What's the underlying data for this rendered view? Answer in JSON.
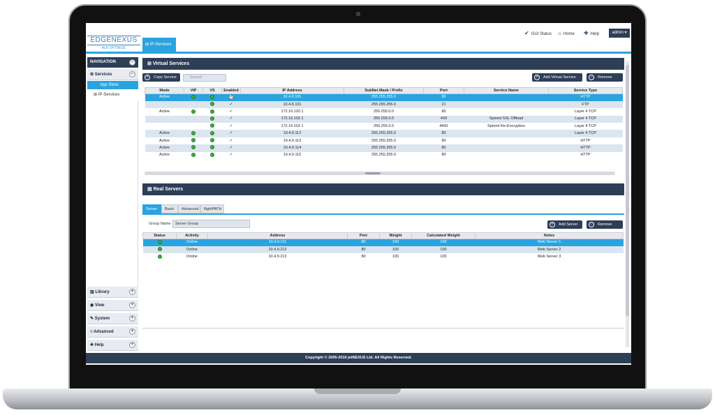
{
  "header": {
    "logo_main": "EDGENEXUS",
    "logo_sub": "ALB OPTIMIZE",
    "active_tab": "IP-Services",
    "nav": [
      {
        "label": "GUI Status",
        "icon": "shield-check-icon"
      },
      {
        "label": "Home",
        "icon": "home-icon"
      },
      {
        "label": "Help",
        "icon": "help-icon"
      }
    ],
    "user": "admin ▾"
  },
  "sidebar": {
    "title": "NAVIGATION",
    "services_label": "Services",
    "app_store_label": "App Store",
    "ip_services_label": "IP-Services",
    "bottom_items": [
      {
        "label": "Library",
        "icon": "library-icon"
      },
      {
        "label": "View",
        "icon": "eye-icon"
      },
      {
        "label": "System",
        "icon": "wrench-icon"
      },
      {
        "label": "Advanced",
        "icon": "sliders-icon"
      },
      {
        "label": "Help",
        "icon": "help-icon"
      }
    ]
  },
  "virtual_services": {
    "title": "Virtual Services",
    "copy_button": "Copy Service",
    "search_placeholder": "Search",
    "add_button": "Add Virtual Service",
    "remove_button": "Remove",
    "columns": [
      "Mode",
      "VIP",
      "VS",
      "Enabled",
      "IP Address",
      "SubNet Mask / Prefix",
      "Port",
      "Service Name",
      "Service Type"
    ],
    "rows": [
      {
        "mode": "Active",
        "vip": true,
        "vs": true,
        "enabled": "box",
        "ip": "10.4.8.101",
        "mask": "255.255.255.0",
        "port": "80",
        "name": "",
        "type": "HTTP",
        "state": "sel"
      },
      {
        "mode": "",
        "vip": false,
        "vs": true,
        "enabled": "tick",
        "ip": "10.4.8.101",
        "mask": "255.255.255.0",
        "port": "21",
        "name": "",
        "type": "FTP",
        "state": "alt"
      },
      {
        "mode": "Active",
        "vip": true,
        "vs": true,
        "enabled": "tick",
        "ip": "172.16.102.1",
        "mask": "255.255.0.0",
        "port": "80",
        "name": "",
        "type": "Layer 4 TCP",
        "state": ""
      },
      {
        "mode": "",
        "vip": false,
        "vs": true,
        "enabled": "tick",
        "ip": "172.16.102.1",
        "mask": "255.255.0.0",
        "port": "443",
        "name": "Spirent SSL Offload",
        "type": "Layer 4 TCP",
        "state": "alt"
      },
      {
        "mode": "",
        "vip": false,
        "vs": true,
        "enabled": "tick",
        "ip": "172.16.102.1",
        "mask": "255.255.0.0",
        "port": "4443",
        "name": "Spirent Re-Encryption",
        "type": "Layer 4 TCP",
        "state": ""
      },
      {
        "mode": "Active",
        "vip": true,
        "vs": true,
        "enabled": "tick",
        "ip": "10.4.9.112",
        "mask": "255.255.255.0",
        "port": "80",
        "name": "",
        "type": "Layer 4 TCP",
        "state": "alt"
      },
      {
        "mode": "Active",
        "vip": true,
        "vs": true,
        "enabled": "tick",
        "ip": "10.4.9.113",
        "mask": "255.255.255.0",
        "port": "80",
        "name": "",
        "type": "HTTP",
        "state": ""
      },
      {
        "mode": "Active",
        "vip": true,
        "vs": true,
        "enabled": "tick",
        "ip": "10.4.9.114",
        "mask": "255.255.255.0",
        "port": "80",
        "name": "",
        "type": "HTTP",
        "state": "alt"
      },
      {
        "mode": "Active",
        "vip": true,
        "vs": true,
        "enabled": "tick",
        "ip": "10.4.9.115",
        "mask": "255.255.255.0",
        "port": "80",
        "name": "",
        "type": "HTTP",
        "state": ""
      }
    ]
  },
  "real_servers": {
    "title": "Real Servers",
    "tabs": [
      "Server",
      "Basic",
      "Advanced",
      "flightPATH"
    ],
    "group_name_label": "Group Name",
    "group_name_value": "Server Group",
    "add_button": "Add Server",
    "remove_button": "Remove",
    "columns": [
      "Status",
      "Activity",
      "Address",
      "Port",
      "Weight",
      "Calculated Weight",
      "Notes"
    ],
    "rows": [
      {
        "activity": "Online",
        "address": "10.4.9.211",
        "port": "80",
        "weight": "100",
        "calc": "100",
        "notes": "Web Server 1",
        "state": "sel"
      },
      {
        "activity": "Online",
        "address": "10.4.9.212",
        "port": "80",
        "weight": "100",
        "calc": "100",
        "notes": "Web Server 2",
        "state": "alt"
      },
      {
        "activity": "Online",
        "address": "10.4.9.213",
        "port": "80",
        "weight": "100",
        "calc": "100",
        "notes": "Web Server 3",
        "state": ""
      }
    ]
  },
  "footer": {
    "text": "Copyright © 2005-2016 jetNEXUS Ltd. All Rights Reserved."
  },
  "colors": {
    "accent": "#2aa3df",
    "navy": "#2d3e57",
    "status_green": "#3fae3f"
  }
}
